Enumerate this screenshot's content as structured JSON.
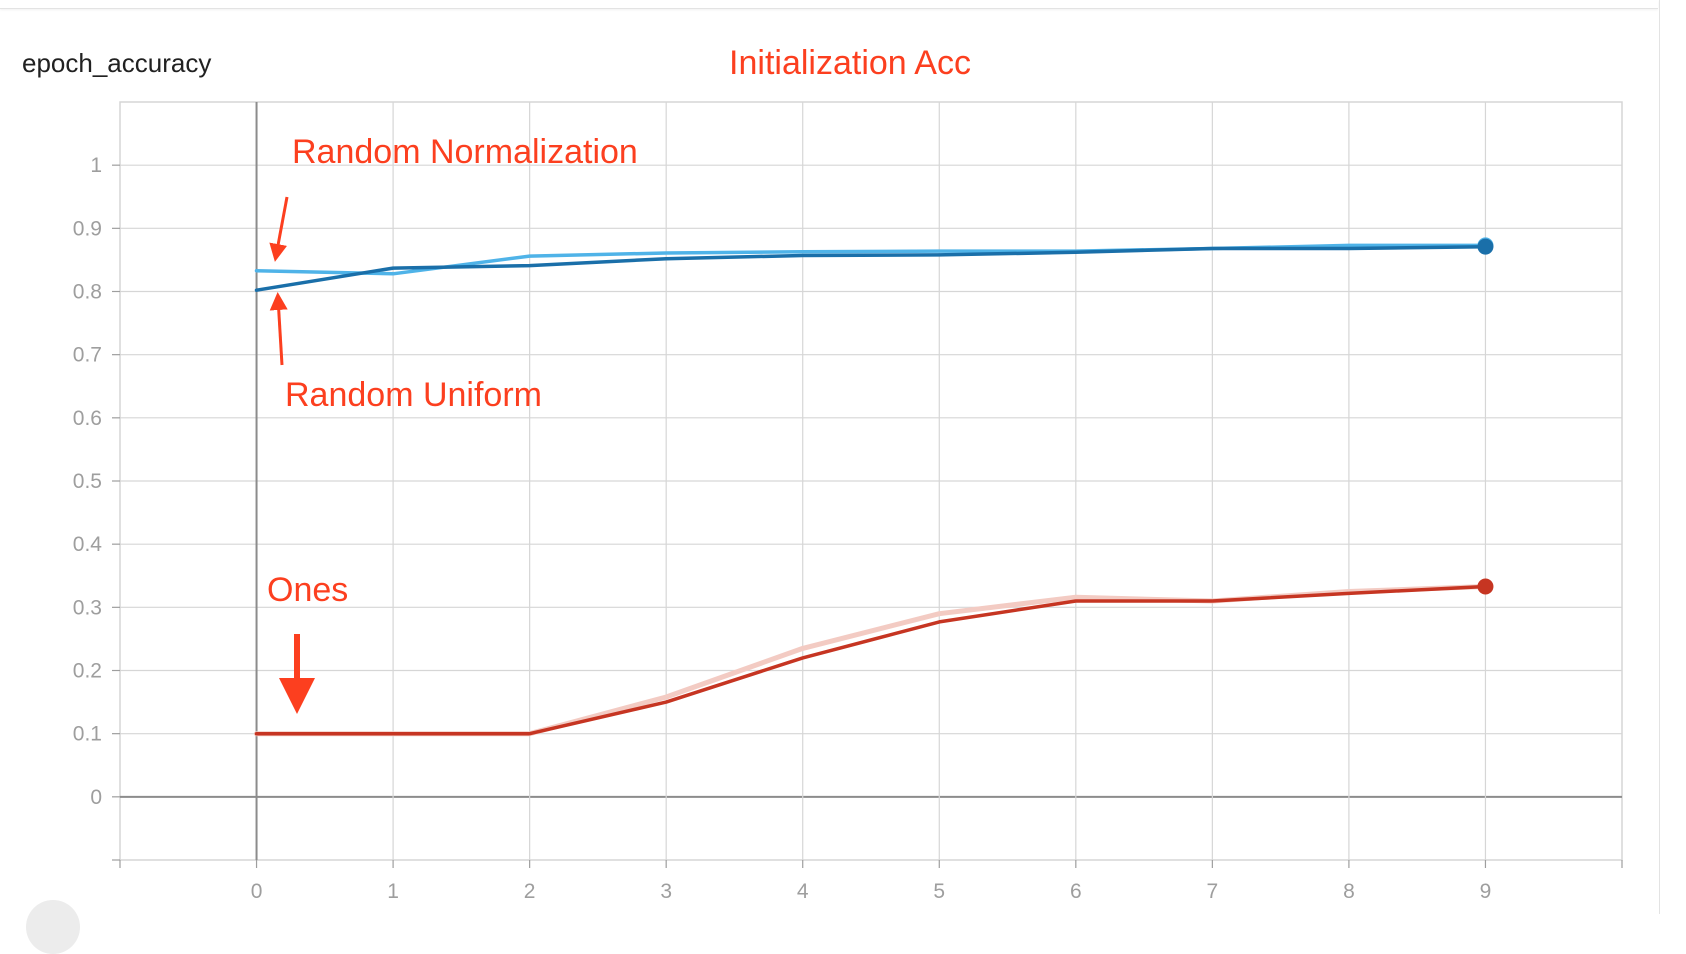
{
  "card": {
    "title": "epoch_accuracy"
  },
  "colors": {
    "random_normal": "#4fb3e8",
    "random_uniform": "#1a6fa9",
    "ones": "#c63522",
    "ones_raw": "#f3cbc3",
    "annotation": "#fc3f1f"
  },
  "chart_data": {
    "type": "line",
    "title": "Initialization Acc",
    "xlabel": "",
    "ylabel": "",
    "x": [
      0,
      1,
      2,
      3,
      4,
      5,
      6,
      7,
      8,
      9
    ],
    "xlim": [
      -1,
      10
    ],
    "ylim": [
      -0.1,
      1.1
    ],
    "x_ticks": [
      "0",
      "1",
      "2",
      "3",
      "4",
      "5",
      "6",
      "7",
      "8",
      "9"
    ],
    "y_ticks": [
      "0",
      "0.1",
      "0.2",
      "0.3",
      "0.4",
      "0.5",
      "0.6",
      "0.7",
      "0.8",
      "0.9",
      "1"
    ],
    "grid": true,
    "series": [
      {
        "color_key": "random_normal",
        "values": [
          0.833,
          0.828,
          0.856,
          0.861,
          0.863,
          0.864,
          0.864,
          0.868,
          0.873,
          0.873
        ]
      },
      {
        "color_key": "random_uniform",
        "values": [
          0.802,
          0.837,
          0.841,
          0.852,
          0.857,
          0.858,
          0.862,
          0.868,
          0.868,
          0.871
        ]
      },
      {
        "color_key": "ones",
        "values": [
          0.1,
          0.1,
          0.1,
          0.15,
          0.22,
          0.277,
          0.31,
          0.31,
          0.322,
          0.333
        ]
      }
    ],
    "raw_series": [
      {
        "color_key": "ones_raw",
        "values": [
          0.1,
          0.1,
          0.1,
          0.158,
          0.235,
          0.29,
          0.316,
          0.31,
          0.325,
          0.333
        ]
      }
    ],
    "annotations": [
      {
        "text": "Random Normalization",
        "target_series": "random_normal"
      },
      {
        "text": "Random Uniform",
        "target_series": "random_uniform"
      },
      {
        "text": "Ones",
        "target_series": "ones"
      }
    ]
  }
}
